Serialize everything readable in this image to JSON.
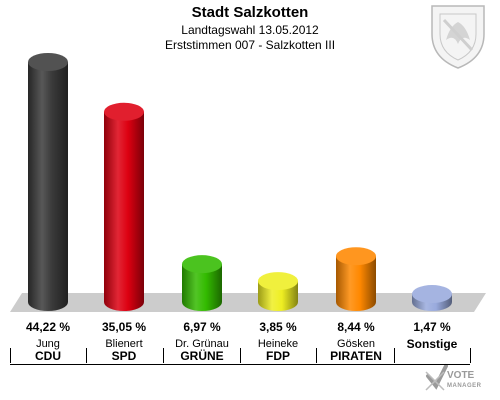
{
  "header": {
    "title": "Stadt Salzkotten",
    "subtitle": "Landtagswahl 13.05.2012",
    "district": "Erststimmen 007 - Salzkotten III"
  },
  "chart_data": {
    "type": "bar",
    "title": "Stadt Salzkotten",
    "categories": [
      "CDU",
      "SPD",
      "GRÜNE",
      "FDP",
      "PIRATEN",
      "Sonstige"
    ],
    "candidates": [
      "Jung",
      "Blienert",
      "Dr. Grünau",
      "Heineke",
      "Gösken",
      ""
    ],
    "values": [
      44.22,
      35.05,
      6.97,
      3.85,
      8.44,
      1.47
    ],
    "value_labels": [
      "44,22 %",
      "35,05 %",
      "6,97 %",
      "3,85 %",
      "8,44 %",
      "1,47 %"
    ],
    "colors": [
      "#3a3a3a",
      "#dd0011",
      "#33bb00",
      "#eeee22",
      "#ff8800",
      "#99aadd"
    ],
    "ylim": [
      0,
      44.22
    ]
  },
  "logo": {
    "line1": "VOTE",
    "line2": "MANAGER"
  }
}
